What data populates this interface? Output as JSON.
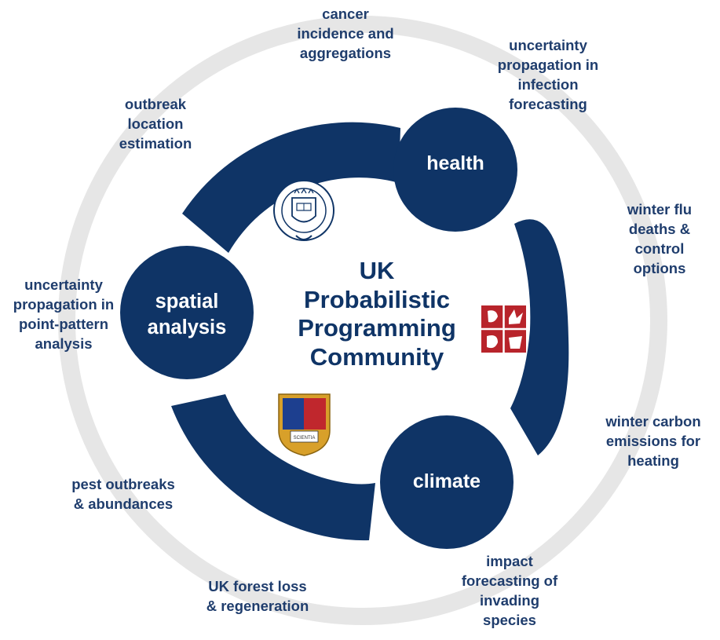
{
  "colors": {
    "navy": "#0f3466",
    "ring": "#e6e6e6",
    "text": "#1f3d6d",
    "white": "#ffffff"
  },
  "center_title": "UK\nProbabilistic\nProgramming\nCommunity",
  "nodes": {
    "health": "health",
    "spatial": "spatial\nanalysis",
    "climate": "climate"
  },
  "applications": {
    "cancer": "cancer\nincidence and\naggregations",
    "infection": "uncertainty\npropagation in\ninfection\nforecasting",
    "outbreak": "outbreak\nlocation\nestimation",
    "flu": "winter flu\ndeaths &\ncontrol\noptions",
    "point_pattern": "uncertainty\npropagation in\npoint-pattern\nanalysis",
    "carbon": "winter carbon\nemissions for\nheating",
    "pest": "pest outbreaks\n& abundances",
    "species": "impact\nforecasting of\ninvading\nspecies",
    "forest": "UK forest loss\n& regeneration"
  },
  "logos": {
    "oxford": "university-of-oxford-crest",
    "bristol": "university-of-bristol-crest",
    "imperial": "imperial-college-crest",
    "oxford_text": "UNIVERSITY OF OXFORD",
    "imperial_text": "SCIENTIA"
  }
}
